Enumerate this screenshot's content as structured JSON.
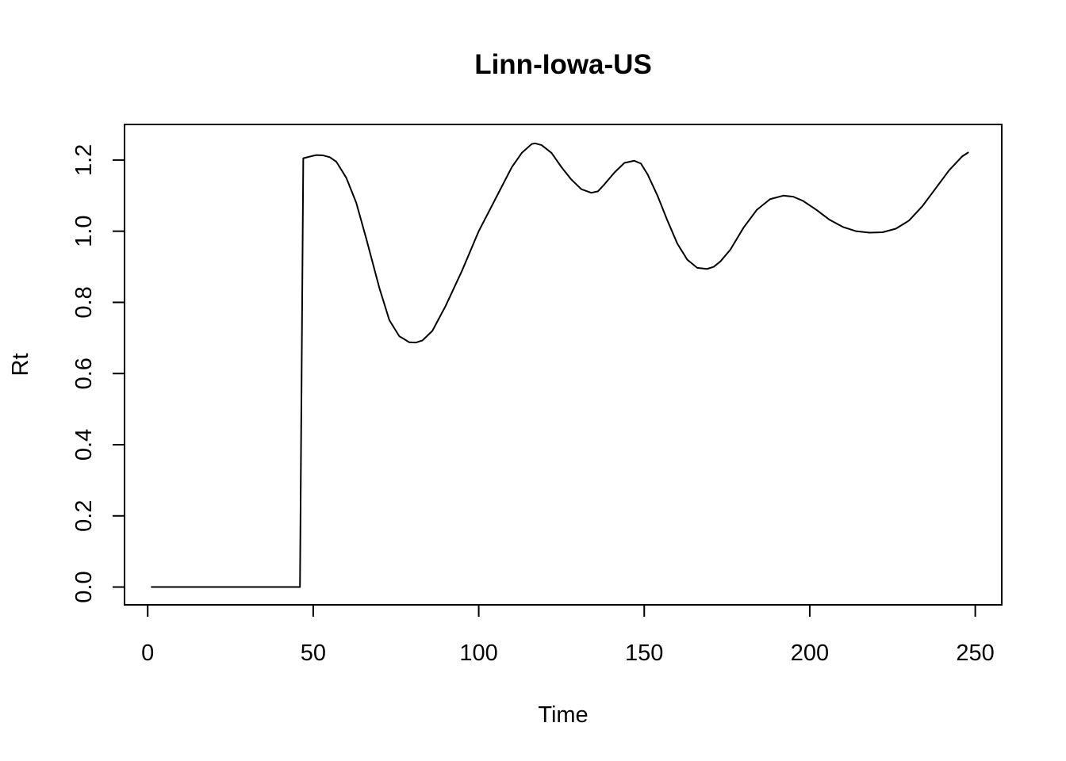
{
  "chart_data": {
    "type": "line",
    "title": "Linn-Iowa-US",
    "xlabel": "Time",
    "ylabel": "Rt",
    "xlim": [
      -7,
      258
    ],
    "ylim": [
      -0.05,
      1.3
    ],
    "x_ticks": [
      0,
      50,
      100,
      150,
      200,
      250
    ],
    "y_ticks": [
      0.0,
      0.2,
      0.4,
      0.6,
      0.8,
      1.0,
      1.2
    ],
    "x_tick_labels": [
      "0",
      "50",
      "100",
      "150",
      "200",
      "250"
    ],
    "y_tick_labels": [
      "0.0",
      "0.2",
      "0.4",
      "0.6",
      "0.8",
      "1.0",
      "1.2"
    ],
    "grid": false,
    "series": [
      {
        "x": [
          1,
          10,
          20,
          30,
          40,
          46,
          47,
          50,
          51,
          53,
          55,
          57,
          60,
          63,
          66,
          70,
          73,
          76,
          79,
          81,
          83,
          86,
          90,
          95,
          100,
          105,
          110,
          113,
          116,
          117,
          119,
          122,
          125,
          128,
          131,
          134,
          136,
          138,
          141,
          144,
          147,
          149,
          151,
          154,
          157,
          160,
          163,
          166,
          169,
          171,
          173,
          176,
          180,
          184,
          188,
          192,
          195,
          198,
          202,
          206,
          210,
          214,
          218,
          222,
          226,
          230,
          234,
          238,
          242,
          246,
          248
        ],
        "values": [
          0,
          0,
          0,
          0,
          0,
          0,
          1.205,
          1.212,
          1.214,
          1.213,
          1.208,
          1.195,
          1.15,
          1.08,
          0.98,
          0.84,
          0.75,
          0.705,
          0.688,
          0.687,
          0.693,
          0.72,
          0.79,
          0.89,
          1.0,
          1.09,
          1.18,
          1.22,
          1.245,
          1.247,
          1.242,
          1.22,
          1.18,
          1.145,
          1.118,
          1.108,
          1.112,
          1.132,
          1.165,
          1.192,
          1.198,
          1.19,
          1.16,
          1.1,
          1.03,
          0.965,
          0.92,
          0.897,
          0.894,
          0.9,
          0.915,
          0.948,
          1.01,
          1.06,
          1.09,
          1.1,
          1.097,
          1.085,
          1.06,
          1.032,
          1.012,
          1.0,
          0.996,
          0.997,
          1.007,
          1.03,
          1.07,
          1.12,
          1.17,
          1.21,
          1.222
        ]
      }
    ]
  }
}
